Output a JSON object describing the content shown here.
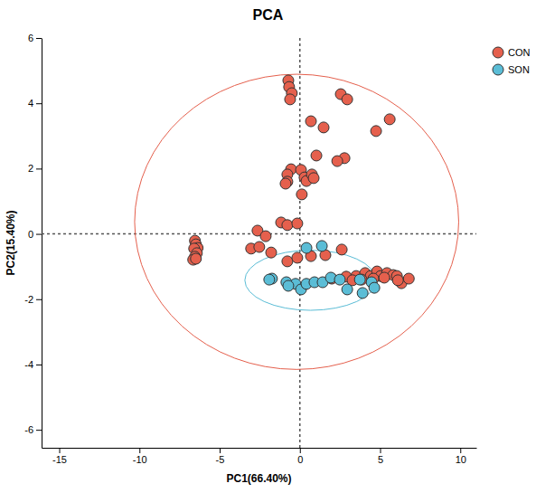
{
  "chart_data": {
    "type": "scatter",
    "title": "PCA",
    "x_label": "PC1(66.40%)",
    "y_label": "PC2(15.40%)",
    "xlim": [
      -16.1,
      11.0
    ],
    "ylim": [
      -6.55,
      6
    ],
    "xticks": [
      -15,
      -10,
      -5,
      0,
      5,
      10
    ],
    "yticks": [
      -6,
      -4,
      -2,
      0,
      2,
      4,
      6
    ],
    "grid": false,
    "legend": "top-right",
    "marker": "circle",
    "zero_lines": {
      "x": 0,
      "y": 0
    },
    "series": [
      {
        "name": "CON",
        "color": "#e5604d",
        "ellipse": {
          "center": [
            -0.2,
            0.37
          ],
          "radii": [
            10.1,
            4.52
          ]
        },
        "x": [
          -0.72,
          -0.67,
          -0.5,
          -0.61,
          2.55,
          2.95,
          0.69,
          1.48,
          5.6,
          4.75,
          1.03,
          2.78,
          2.33,
          -0.55,
          -0.78,
          -0.78,
          -0.89,
          0.07,
          0.29,
          0.41,
          0.75,
          0.86,
          0.12,
          -1.17,
          -0.78,
          -0.16,
          -2.64,
          -2.13,
          -6.54,
          -6.48,
          -6.37,
          -6.59,
          -6.42,
          -6.54,
          -6.65,
          -6.48,
          -3.04,
          -2.53,
          -1.79,
          -0.78,
          -0.16,
          0.69,
          1.59,
          2.61,
          1.99,
          2.89,
          3.51,
          4.07,
          4.41,
          4.81,
          5.03,
          5.43,
          5.82,
          4.58,
          5.26,
          6.05,
          6.33,
          6.11,
          6.79,
          3.28,
          3.85
        ],
        "values": [
          4.7,
          4.5,
          4.31,
          4.12,
          4.28,
          4.12,
          3.45,
          3.26,
          3.51,
          3.15,
          2.4,
          2.32,
          2.23,
          1.98,
          1.82,
          1.6,
          1.54,
          1.96,
          1.73,
          1.62,
          1.82,
          1.71,
          1.21,
          0.35,
          0.27,
          0.32,
          0.1,
          -0.07,
          -0.21,
          -0.32,
          -0.43,
          -0.45,
          -0.59,
          -0.7,
          -0.79,
          -0.76,
          -0.45,
          -0.4,
          -0.57,
          -0.84,
          -0.73,
          -0.68,
          -0.65,
          -0.48,
          -1.37,
          -1.31,
          -1.29,
          -1.2,
          -1.29,
          -1.15,
          -1.29,
          -1.2,
          -1.26,
          -1.37,
          -1.34,
          -1.29,
          -1.51,
          -1.42,
          -1.37,
          -1.42,
          -1.4
        ]
      },
      {
        "name": "SON",
        "color": "#5bbdd6",
        "ellipse": {
          "center": [
            0.66,
            -1.42
          ],
          "radii": [
            4.09,
            0.92
          ]
        },
        "x": [
          -1.74,
          -0.84,
          -0.27,
          0.07,
          0.41,
          0.91,
          0.41,
          1.37,
          1.42,
          1.93,
          2.49,
          2.95,
          3.74,
          3.91,
          4.47,
          4.64,
          -1.91,
          -0.72
        ],
        "values": [
          -1.37,
          -1.48,
          -1.53,
          -1.7,
          -1.53,
          -1.48,
          -0.43,
          -0.37,
          -1.48,
          -1.34,
          -1.4,
          -1.7,
          -1.4,
          -1.81,
          -1.48,
          -1.65,
          -1.4,
          -1.59
        ]
      }
    ]
  }
}
